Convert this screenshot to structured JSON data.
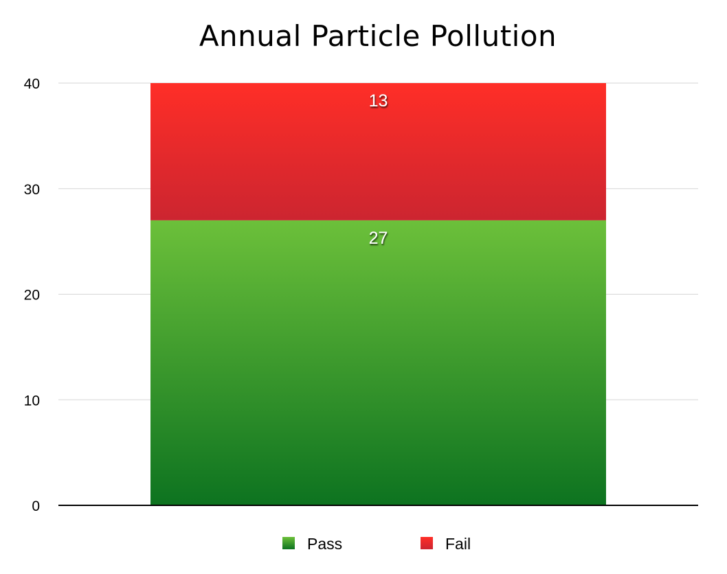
{
  "chart_data": {
    "type": "bar",
    "stacked": true,
    "title": "Annual Particle Pollution",
    "categories": [
      ""
    ],
    "series": [
      {
        "name": "Pass",
        "values": [
          27
        ],
        "color": "#2f9a2f",
        "gradient": [
          "#6cc03a",
          "#0d7320"
        ]
      },
      {
        "name": "Fail",
        "values": [
          13
        ],
        "color": "#e8322d",
        "gradient": [
          "#ff2e27",
          "#cc2530"
        ]
      }
    ],
    "ylim": [
      0,
      40
    ],
    "yticks": [
      0,
      10,
      20,
      30,
      40
    ],
    "xlabel": "",
    "ylabel": "",
    "grid": true,
    "legend": "bottom-center",
    "data_labels": true
  }
}
